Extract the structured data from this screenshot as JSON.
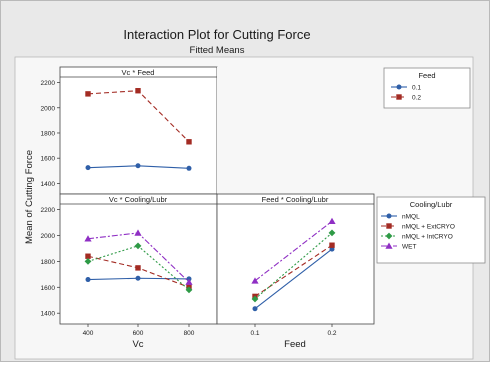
{
  "title": "Interaction Plot for Cutting Force",
  "subtitle": "Fitted Means",
  "ylabel": "Mean of Cutting Force",
  "colors": {
    "feed": [
      "#2f5fa8",
      "#a32b23"
    ],
    "cool": [
      "#2f5fa8",
      "#a32b23",
      "#2e9a46",
      "#8f2fc4"
    ]
  },
  "legend_feed": {
    "title": "Feed",
    "items": [
      "0.1",
      "0.2"
    ]
  },
  "legend_cool": {
    "title": "Cooling/Lubr",
    "items": [
      "nMQL",
      "nMQL + ExtCRYO",
      "nMQL + IntCRYO",
      "WET"
    ]
  },
  "chart_data": [
    {
      "type": "line",
      "title": "Vc * Feed",
      "categories": [
        400,
        600,
        800
      ],
      "ylim": [
        1340,
        2220
      ],
      "yticks": [
        1400,
        1600,
        1800,
        2000,
        2200
      ],
      "series": [
        {
          "name": "0.1",
          "values": [
            1525,
            1540,
            1520
          ]
        },
        {
          "name": "0.2",
          "values": [
            2110,
            2135,
            1730
          ]
        }
      ]
    },
    {
      "type": "line",
      "title": "Vc * Cooling/Lubr",
      "xlabel": "Vc",
      "categories": [
        400,
        600,
        800
      ],
      "ylim": [
        1340,
        2220
      ],
      "yticks": [
        1400,
        1600,
        1800,
        2000,
        2200
      ],
      "series": [
        {
          "name": "nMQL",
          "values": [
            1660,
            1670,
            1665
          ]
        },
        {
          "name": "nMQL + ExtCRYO",
          "values": [
            1840,
            1750,
            1600
          ]
        },
        {
          "name": "nMQL + IntCRYO",
          "values": [
            1800,
            1920,
            1580
          ]
        },
        {
          "name": "WET",
          "values": [
            1975,
            2020,
            1640
          ]
        }
      ]
    },
    {
      "type": "line",
      "title": "Feed * Cooling/Lubr",
      "xlabel": "Feed",
      "categories": [
        0.1,
        0.2
      ],
      "ylim": [
        1340,
        2220
      ],
      "series": [
        {
          "name": "nMQL",
          "values": [
            1435,
            1895
          ]
        },
        {
          "name": "nMQL + ExtCRYO",
          "values": [
            1530,
            1925
          ]
        },
        {
          "name": "nMQL + IntCRYO",
          "values": [
            1510,
            2020
          ]
        },
        {
          "name": "WET",
          "values": [
            1650,
            2110
          ]
        }
      ]
    }
  ]
}
